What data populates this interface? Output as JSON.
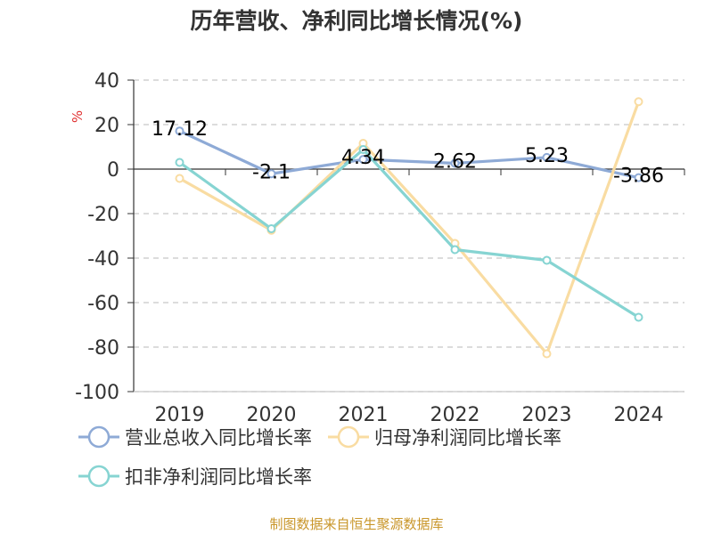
{
  "title": "历年营收、净利同比增长情况(%)",
  "source": "制图数据来自恒生聚源数据库",
  "source_color": "#c9962a",
  "chart_data": {
    "type": "line",
    "title": "历年营收、净利同比增长情况(%)",
    "ylabel": "%",
    "categories": [
      "2019",
      "2020",
      "2021",
      "2022",
      "2023",
      "2024"
    ],
    "ylim": [
      -100,
      40
    ],
    "yticks": [
      40,
      20,
      0,
      -20,
      -40,
      -60,
      -80,
      -100
    ],
    "grid": "horizontal-dashed",
    "legend_position": "bottom",
    "series": [
      {
        "name": "营业总收入同比增长率",
        "color": "#8eaad6",
        "values": [
          17.12,
          -2.1,
          4.34,
          2.62,
          5.23,
          -3.86
        ],
        "data_labels": [
          "17.12",
          "-2.1",
          "4.34",
          "2.62",
          "5.23",
          "-3.86"
        ]
      },
      {
        "name": "归母净利润同比增长率",
        "color": "#f9dca2",
        "values": [
          -4.2,
          -27.5,
          11.6,
          -33.4,
          -83.0,
          30.3
        ]
      },
      {
        "name": "扣非净利润同比增长率",
        "color": "#86d4d2",
        "values": [
          3.0,
          -26.8,
          8.8,
          -36.2,
          -41.0,
          -66.6
        ]
      }
    ]
  }
}
